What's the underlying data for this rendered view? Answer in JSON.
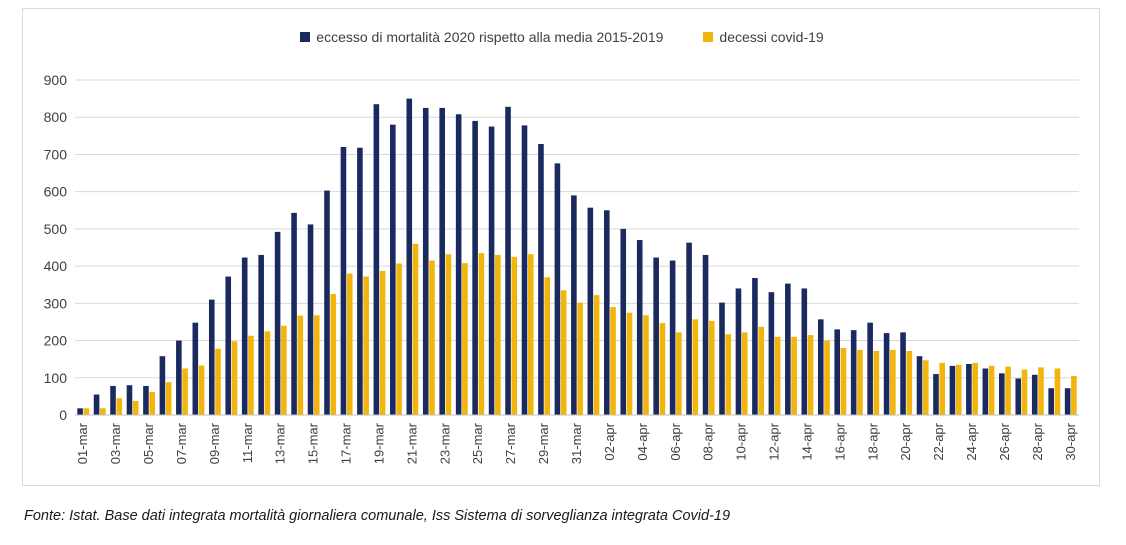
{
  "chart_data": {
    "type": "bar",
    "legend_position": "top-center",
    "grid": true,
    "ylim": [
      0,
      900
    ],
    "yticks": [
      0,
      100,
      200,
      300,
      400,
      500,
      600,
      700,
      800,
      900
    ],
    "categories": [
      "01-mar",
      "02-mar",
      "03-mar",
      "04-mar",
      "05-mar",
      "06-mar",
      "07-mar",
      "08-mar",
      "09-mar",
      "10-mar",
      "11-mar",
      "12-mar",
      "13-mar",
      "14-mar",
      "15-mar",
      "16-mar",
      "17-mar",
      "18-mar",
      "19-mar",
      "20-mar",
      "21-mar",
      "22-mar",
      "23-mar",
      "24-mar",
      "25-mar",
      "26-mar",
      "27-mar",
      "28-mar",
      "29-mar",
      "30-mar",
      "31-mar",
      "01-apr",
      "02-apr",
      "03-apr",
      "04-apr",
      "05-apr",
      "06-apr",
      "07-apr",
      "08-apr",
      "09-apr",
      "10-apr",
      "11-apr",
      "12-apr",
      "13-apr",
      "14-apr",
      "15-apr",
      "16-apr",
      "17-apr",
      "18-apr",
      "19-apr",
      "20-apr",
      "21-apr",
      "22-apr",
      "23-apr",
      "24-apr",
      "25-apr",
      "26-apr",
      "27-apr",
      "28-apr",
      "29-apr",
      "30-apr"
    ],
    "tick_labels": [
      "01-mar",
      "03-mar",
      "05-mar",
      "07-mar",
      "09-mar",
      "11-mar",
      "13-mar",
      "15-mar",
      "17-mar",
      "19-mar",
      "21-mar",
      "23-mar",
      "25-mar",
      "27-mar",
      "29-mar",
      "31-mar",
      "02-apr",
      "04-apr",
      "06-apr",
      "08-apr",
      "10-apr",
      "12-apr",
      "14-apr",
      "16-apr",
      "18-apr",
      "20-apr",
      "22-apr",
      "24-apr",
      "26-apr",
      "28-apr",
      "30-apr"
    ],
    "series": [
      {
        "name": "eccesso di mortalità  2020 rispetto alla media 2015-2019",
        "color": "#1b2a5e",
        "values": [
          18,
          55,
          78,
          80,
          78,
          158,
          200,
          248,
          310,
          372,
          423,
          430,
          492,
          543,
          512,
          603,
          720,
          718,
          835,
          780,
          850,
          825,
          825,
          808,
          790,
          775,
          828,
          778,
          728,
          676,
          590,
          557,
          550,
          500,
          470,
          423,
          415,
          463,
          430,
          302,
          340,
          368,
          330,
          353,
          340,
          257,
          230,
          228,
          248,
          220,
          222,
          158,
          110,
          132,
          137,
          125,
          112,
          98,
          108,
          72,
          72
        ]
      },
      {
        "name": "decessi covid-19",
        "color": "#f2b50c",
        "values": [
          18,
          18,
          45,
          38,
          62,
          88,
          125,
          133,
          178,
          198,
          213,
          225,
          240,
          267,
          268,
          325,
          380,
          372,
          387,
          407,
          460,
          415,
          432,
          408,
          435,
          430,
          425,
          432,
          370,
          335,
          302,
          322,
          290,
          275,
          268,
          247,
          222,
          257,
          253,
          217,
          222,
          237,
          210,
          210,
          215,
          200,
          180,
          175,
          172,
          175,
          172,
          147,
          140,
          135,
          140,
          132,
          130,
          122,
          128,
          125,
          105
        ]
      }
    ]
  },
  "source_note": "Fonte: Istat. Base dati integrata mortalità giornaliera comunale, Iss Sistema di sorveglianza integrata Covid-19"
}
